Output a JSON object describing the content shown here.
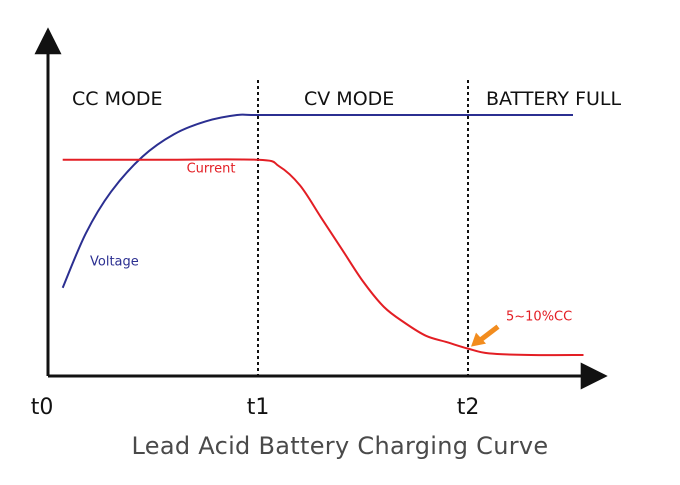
{
  "chart_data": {
    "type": "line",
    "title": "Lead Acid Battery Charging Curve",
    "x_ticks": [
      "t0",
      "t1",
      "t2"
    ],
    "x_tick_values": [
      0,
      1,
      2
    ],
    "xlim": [
      0,
      2.7
    ],
    "ylim": [
      0,
      1
    ],
    "regions": [
      {
        "label": "CC MODE",
        "from": 0,
        "to": 1
      },
      {
        "label": "CV MODE",
        "from": 1,
        "to": 2
      },
      {
        "label": "BATTERY FULL",
        "from": 2,
        "to": 2.7
      }
    ],
    "series": [
      {
        "name": "Voltage",
        "color": "#2b2f91",
        "points": [
          [
            0.07,
            0.26
          ],
          [
            0.18,
            0.43
          ],
          [
            0.3,
            0.56
          ],
          [
            0.45,
            0.67
          ],
          [
            0.6,
            0.74
          ],
          [
            0.75,
            0.78
          ],
          [
            0.9,
            0.8
          ],
          [
            1.0,
            0.8
          ],
          [
            1.5,
            0.8
          ],
          [
            2.0,
            0.8
          ],
          [
            2.5,
            0.8
          ]
        ]
      },
      {
        "name": "Current",
        "color": "#e31e24",
        "points": [
          [
            0.07,
            0.66
          ],
          [
            0.5,
            0.66
          ],
          [
            1.0,
            0.66
          ],
          [
            1.1,
            0.64
          ],
          [
            1.2,
            0.58
          ],
          [
            1.3,
            0.48
          ],
          [
            1.4,
            0.38
          ],
          [
            1.5,
            0.28
          ],
          [
            1.6,
            0.2
          ],
          [
            1.7,
            0.15
          ],
          [
            1.8,
            0.11
          ],
          [
            1.9,
            0.09
          ],
          [
            2.0,
            0.07
          ],
          [
            2.1,
            0.055
          ],
          [
            2.3,
            0.05
          ],
          [
            2.55,
            0.05
          ]
        ]
      }
    ],
    "annotation": {
      "text": "5~10%CC",
      "color": "#e31e24",
      "arrow_color": "#f28c1e",
      "x": 2.0,
      "y": 0.07
    }
  }
}
